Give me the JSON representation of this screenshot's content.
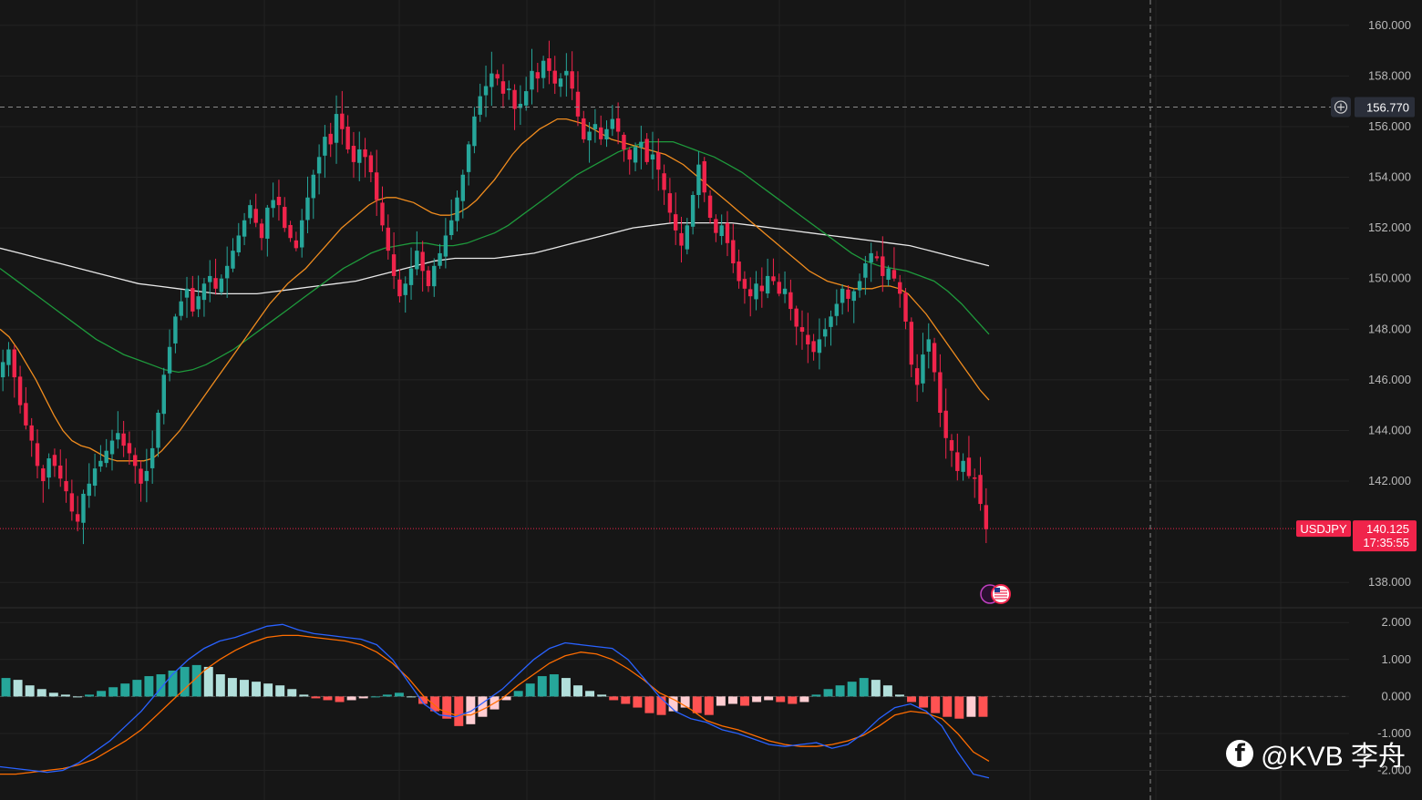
{
  "chart_data": [
    {
      "type": "candlestick",
      "symbol": "USDJPY",
      "last_price": "140.125",
      "countdown": "17:35:55",
      "crosshair_price": "156.770",
      "ylim": [
        137.0,
        161.0
      ],
      "y_ticks": [
        "160.000",
        "158.000",
        "156.000",
        "154.000",
        "152.000",
        "150.000",
        "148.000",
        "146.000",
        "144.000",
        "142.000",
        "138.000"
      ],
      "grid": true,
      "colors": {
        "up": "#26a69a",
        "down": "#f0244b",
        "ma_fast": "#f08c1e",
        "ma_mid": "#1e9a3c",
        "ma_slow": "#e8e8e8",
        "price_tag": "#f0244b",
        "crosshair_tag": "#2a2e39"
      },
      "close": [
        146.7,
        147.2,
        146.1,
        145.0,
        144.2,
        143.6,
        142.6,
        142.0,
        142.9,
        142.6,
        142.1,
        141.6,
        140.8,
        140.4,
        141.5,
        141.9,
        142.5,
        142.8,
        143.2,
        143.6,
        143.9,
        143.4,
        143.1,
        142.6,
        141.9,
        142.4,
        143.3,
        144.7,
        146.2,
        147.3,
        148.5,
        149.1,
        149.6,
        148.7,
        149.3,
        149.8,
        150.1,
        149.6,
        150.0,
        150.5,
        151.1,
        151.7,
        152.3,
        152.9,
        152.2,
        151.6,
        152.8,
        153.1,
        152.9,
        152.0,
        151.6,
        151.2,
        152.3,
        153.2,
        154.1,
        154.8,
        155.6,
        155.3,
        156.5,
        155.9,
        155.1,
        154.6,
        155.1,
        154.8,
        154.2,
        153.1,
        152.1,
        151.1,
        150.1,
        149.3,
        149.8,
        150.4,
        151.1,
        150.3,
        149.7,
        150.5,
        151.0,
        151.7,
        152.3,
        153.2,
        154.1,
        155.3,
        156.4,
        157.2,
        157.6,
        158.1,
        157.9,
        157.3,
        157.5,
        156.7,
        156.9,
        157.4,
        158.2,
        157.9,
        158.6,
        158.2,
        157.7,
        157.9,
        158.2,
        157.5,
        156.4,
        155.5,
        155.8,
        156.1,
        155.5,
        155.9,
        156.3,
        155.8,
        155.1,
        154.7,
        155.2,
        155.4,
        154.6,
        154.9,
        154.3,
        153.5,
        152.6,
        151.9,
        151.3,
        152.1,
        153.3,
        154.5,
        153.4,
        152.4,
        151.8,
        152.1,
        151.4,
        150.6,
        149.9,
        149.6,
        149.3,
        149.8,
        149.5,
        150.1,
        149.9,
        149.4,
        149.6,
        148.8,
        148.1,
        147.9,
        147.4,
        147.1,
        147.6,
        148.0,
        148.5,
        149.0,
        149.6,
        149.2,
        149.5,
        149.9,
        150.6,
        151.0,
        150.8,
        150.1,
        150.4,
        150.0,
        149.4,
        148.3,
        146.6,
        145.8,
        147.0,
        147.6,
        146.3,
        144.7,
        143.7,
        143.2,
        142.4,
        142.8,
        142.2,
        142.1,
        141.1,
        140.1
      ],
      "ma_fast": [
        148.0,
        147.7,
        147.2,
        146.6,
        146.0,
        145.3,
        144.6,
        144.0,
        143.6,
        143.4,
        143.3,
        143.1,
        142.9,
        142.8,
        142.8,
        142.8,
        142.8,
        142.9,
        143.2,
        143.6,
        144.0,
        144.5,
        145.0,
        145.5,
        146.0,
        146.5,
        147.0,
        147.5,
        148.0,
        148.5,
        149.0,
        149.4,
        149.8,
        150.1,
        150.4,
        150.8,
        151.2,
        151.6,
        152.0,
        152.3,
        152.6,
        152.9,
        153.1,
        153.2,
        153.2,
        153.1,
        153.0,
        152.8,
        152.6,
        152.5,
        152.5,
        152.6,
        152.8,
        153.1,
        153.5,
        153.9,
        154.4,
        154.9,
        155.3,
        155.6,
        155.9,
        156.1,
        156.3,
        156.3,
        156.2,
        156.1,
        155.9,
        155.7,
        155.5,
        155.4,
        155.3,
        155.2,
        155.1,
        155.0,
        154.9,
        154.7,
        154.5,
        154.2,
        153.9,
        153.6,
        153.3,
        153.0,
        152.7,
        152.4,
        152.1,
        151.8,
        151.5,
        151.2,
        150.9,
        150.6,
        150.3,
        150.1,
        149.9,
        149.8,
        149.7,
        149.6,
        149.6,
        149.6,
        149.7,
        149.7,
        149.6,
        149.4,
        149.0,
        148.6,
        148.1,
        147.6,
        147.1,
        146.6,
        146.1,
        145.6,
        145.2
      ],
      "ma_mid": [
        150.4,
        150.0,
        149.6,
        149.2,
        148.8,
        148.4,
        148.0,
        147.6,
        147.3,
        147.0,
        146.8,
        146.6,
        146.4,
        146.3,
        146.4,
        146.6,
        146.9,
        147.2,
        147.6,
        148.0,
        148.4,
        148.8,
        149.2,
        149.6,
        150.0,
        150.4,
        150.7,
        151.0,
        151.2,
        151.3,
        151.4,
        151.4,
        151.3,
        151.3,
        151.4,
        151.6,
        151.8,
        152.1,
        152.5,
        152.9,
        153.3,
        153.7,
        154.1,
        154.4,
        154.7,
        155.0,
        155.2,
        155.4,
        155.4,
        155.4,
        155.2,
        155.0,
        154.8,
        154.5,
        154.2,
        153.8,
        153.4,
        153.0,
        152.6,
        152.2,
        151.8,
        151.4,
        151.0,
        150.7,
        150.5,
        150.4,
        150.3,
        150.1,
        149.9,
        149.5,
        149.0,
        148.4,
        147.8
      ],
      "ma_slow": [
        151.2,
        151.0,
        150.8,
        150.6,
        150.4,
        150.2,
        150.0,
        149.8,
        149.7,
        149.6,
        149.5,
        149.4,
        149.4,
        149.4,
        149.5,
        149.6,
        149.7,
        149.8,
        149.9,
        150.1,
        150.3,
        150.5,
        150.7,
        150.8,
        150.8,
        150.8,
        150.9,
        151.0,
        151.2,
        151.4,
        151.6,
        151.8,
        152.0,
        152.1,
        152.2,
        152.2,
        152.2,
        152.2,
        152.1,
        152.0,
        151.9,
        151.8,
        151.7,
        151.6,
        151.5,
        151.4,
        151.3,
        151.1,
        150.9,
        150.7,
        150.5
      ]
    },
    {
      "type": "macd",
      "ylim": [
        -2.8,
        2.4
      ],
      "y_ticks": [
        "2.000",
        "1.000",
        "0.000",
        "-1.000",
        "-2.000"
      ],
      "colors": {
        "hist_pos_strong": "#26a69a",
        "hist_pos_weak": "#b2dfdb",
        "hist_neg_strong": "#ff5252",
        "hist_neg_weak": "#ffcdd2",
        "macd": "#2962ff",
        "signal": "#ff6d00"
      },
      "macd": [
        -1.9,
        -1.95,
        -2.0,
        -2.05,
        -2.0,
        -1.8,
        -1.5,
        -1.2,
        -0.8,
        -0.4,
        0.1,
        0.6,
        1.0,
        1.3,
        1.5,
        1.6,
        1.75,
        1.9,
        1.95,
        1.8,
        1.7,
        1.65,
        1.6,
        1.55,
        1.4,
        1.0,
        0.4,
        -0.2,
        -0.5,
        -0.55,
        -0.4,
        -0.1,
        0.2,
        0.6,
        1.0,
        1.3,
        1.45,
        1.4,
        1.35,
        1.3,
        1.0,
        0.5,
        0.0,
        -0.4,
        -0.6,
        -0.7,
        -0.9,
        -1.0,
        -1.15,
        -1.3,
        -1.35,
        -1.3,
        -1.25,
        -1.4,
        -1.3,
        -1.0,
        -0.6,
        -0.3,
        -0.2,
        -0.4,
        -0.8,
        -1.5,
        -2.1,
        -2.2
      ],
      "signal": [
        -2.1,
        -2.1,
        -2.05,
        -2.0,
        -1.95,
        -1.85,
        -1.7,
        -1.45,
        -1.2,
        -0.9,
        -0.5,
        -0.1,
        0.3,
        0.7,
        1.0,
        1.25,
        1.45,
        1.6,
        1.65,
        1.65,
        1.6,
        1.55,
        1.5,
        1.4,
        1.2,
        0.9,
        0.5,
        0.0,
        -0.35,
        -0.5,
        -0.5,
        -0.3,
        -0.05,
        0.3,
        0.6,
        0.9,
        1.1,
        1.2,
        1.15,
        1.0,
        0.75,
        0.45,
        0.1,
        -0.1,
        -0.35,
        -0.65,
        -0.8,
        -0.9,
        -1.05,
        -1.2,
        -1.3,
        -1.35,
        -1.35,
        -1.3,
        -1.2,
        -1.05,
        -0.8,
        -0.5,
        -0.4,
        -0.45,
        -0.6,
        -1.0,
        -1.5,
        -1.75
      ],
      "histogram": [
        0.5,
        0.45,
        0.3,
        0.2,
        0.1,
        0.05,
        0.0,
        0.05,
        0.15,
        0.25,
        0.35,
        0.45,
        0.55,
        0.6,
        0.7,
        0.8,
        0.85,
        0.8,
        0.6,
        0.5,
        0.45,
        0.4,
        0.35,
        0.3,
        0.2,
        0.05,
        -0.05,
        -0.1,
        -0.15,
        -0.1,
        -0.05,
        0.0,
        0.05,
        0.1,
        0.0,
        -0.2,
        -0.4,
        -0.6,
        -0.8,
        -0.75,
        -0.55,
        -0.35,
        -0.1,
        0.15,
        0.35,
        0.55,
        0.6,
        0.5,
        0.3,
        0.15,
        0.05,
        -0.1,
        -0.2,
        -0.3,
        -0.45,
        -0.5,
        -0.4,
        -0.3,
        -0.45,
        -0.5,
        -0.25,
        -0.2,
        -0.25,
        -0.15,
        -0.1,
        -0.15,
        -0.2,
        -0.15,
        0.05,
        0.2,
        0.3,
        0.4,
        0.5,
        0.45,
        0.3,
        0.05,
        -0.15,
        -0.3,
        -0.45,
        -0.55,
        -0.6,
        -0.55,
        -0.55
      ]
    }
  ],
  "watermark": {
    "icon": "facebook-icon",
    "text": "@KVB 李舟"
  }
}
